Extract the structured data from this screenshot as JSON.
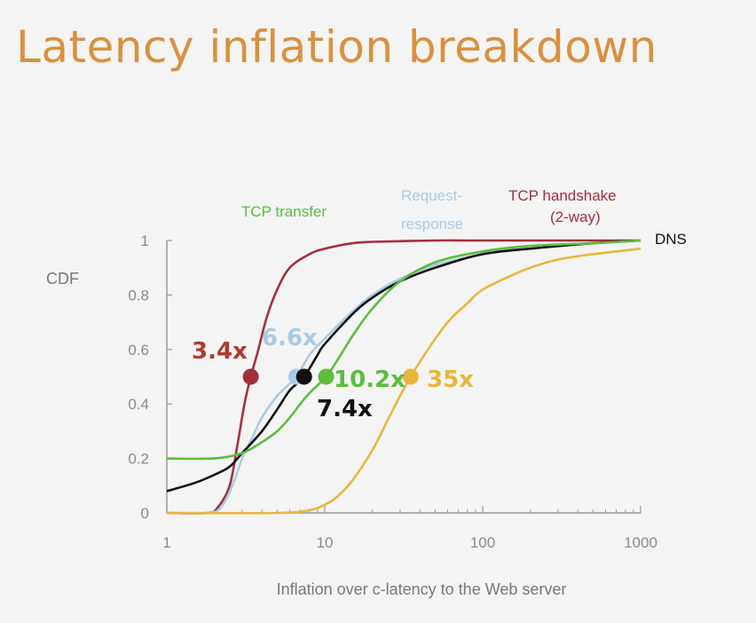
{
  "slide": {
    "title": "Latency inflation breakdown"
  },
  "chart_data": {
    "type": "line",
    "xlabel": "Inflation over c-latency to the Web server",
    "ylabel": "CDF",
    "x_scale": "log",
    "xlim": [
      1,
      1000
    ],
    "ylim": [
      0,
      1
    ],
    "x_ticks": [
      1,
      10,
      100,
      1000
    ],
    "x_tick_labels": [
      "1",
      "10",
      "100",
      "1000"
    ],
    "y_ticks": [
      0,
      0.2,
      0.4,
      0.6,
      0.8,
      1
    ],
    "y_tick_labels": [
      "0",
      "0.2",
      "0.4",
      "0.6",
      "0.8",
      "1"
    ],
    "grid": false,
    "series": [
      {
        "name": "TCP handshake (2-way)",
        "name_lines": [
          "TCP handshake",
          "(2-way)"
        ],
        "color": "#a3303a",
        "x": [
          1,
          1.8,
          2.1,
          2.5,
          2.8,
          3.1,
          3.4,
          3.8,
          4.3,
          5,
          6,
          8,
          10,
          15,
          20,
          50,
          100,
          1000
        ],
        "y": [
          0,
          0,
          0.02,
          0.1,
          0.25,
          0.4,
          0.5,
          0.6,
          0.72,
          0.82,
          0.9,
          0.95,
          0.97,
          0.99,
          0.995,
          1,
          1,
          1
        ],
        "median_label": "3.4x",
        "median_x": 3.4
      },
      {
        "name": "Request-response",
        "name_lines": [
          "Request-",
          "response"
        ],
        "color": "#a8cce8",
        "x": [
          1,
          1.8,
          2.2,
          2.6,
          3,
          3.5,
          4,
          5,
          6.6,
          8,
          10,
          15,
          20,
          30,
          50,
          100,
          200,
          500,
          1000
        ],
        "y": [
          0,
          0,
          0.02,
          0.1,
          0.2,
          0.28,
          0.35,
          0.43,
          0.5,
          0.58,
          0.64,
          0.74,
          0.8,
          0.86,
          0.91,
          0.95,
          0.98,
          0.99,
          1
        ],
        "median_label": "6.6x",
        "median_x": 6.6
      },
      {
        "name": "DNS",
        "name_lines": [
          "DNS"
        ],
        "color": "#111111",
        "x": [
          1,
          1.5,
          2,
          2.5,
          3,
          4,
          5,
          6,
          7.4,
          9,
          10,
          15,
          20,
          30,
          50,
          100,
          200,
          500,
          1000
        ],
        "y": [
          0.08,
          0.11,
          0.14,
          0.17,
          0.22,
          0.3,
          0.38,
          0.45,
          0.5,
          0.58,
          0.62,
          0.73,
          0.79,
          0.85,
          0.9,
          0.95,
          0.97,
          0.99,
          1
        ],
        "median_label": "7.4x",
        "median_x": 7.4
      },
      {
        "name": "TCP transfer",
        "name_lines": [
          "TCP transfer"
        ],
        "color": "#5cbd3f",
        "x": [
          1,
          2,
          3,
          4,
          5,
          6,
          7,
          8,
          10.2,
          12,
          15,
          20,
          30,
          50,
          100,
          200,
          500,
          1000
        ],
        "y": [
          0.2,
          0.2,
          0.22,
          0.26,
          0.3,
          0.35,
          0.4,
          0.44,
          0.5,
          0.56,
          0.65,
          0.75,
          0.85,
          0.92,
          0.96,
          0.98,
          0.99,
          1
        ],
        "median_label": "10.2x",
        "median_x": 10.2
      },
      {
        "name": "TCP transfer (35x)",
        "name_lines": [],
        "color": "#e7b73c",
        "x": [
          1,
          5,
          8,
          10,
          12,
          15,
          20,
          25,
          30,
          35,
          45,
          60,
          80,
          100,
          150,
          200,
          300,
          500,
          1000
        ],
        "y": [
          0,
          0,
          0.01,
          0.03,
          0.06,
          0.12,
          0.23,
          0.34,
          0.43,
          0.5,
          0.6,
          0.7,
          0.77,
          0.82,
          0.87,
          0.9,
          0.93,
          0.95,
          0.97
        ],
        "median_label": "35x",
        "median_x": 35
      }
    ]
  }
}
